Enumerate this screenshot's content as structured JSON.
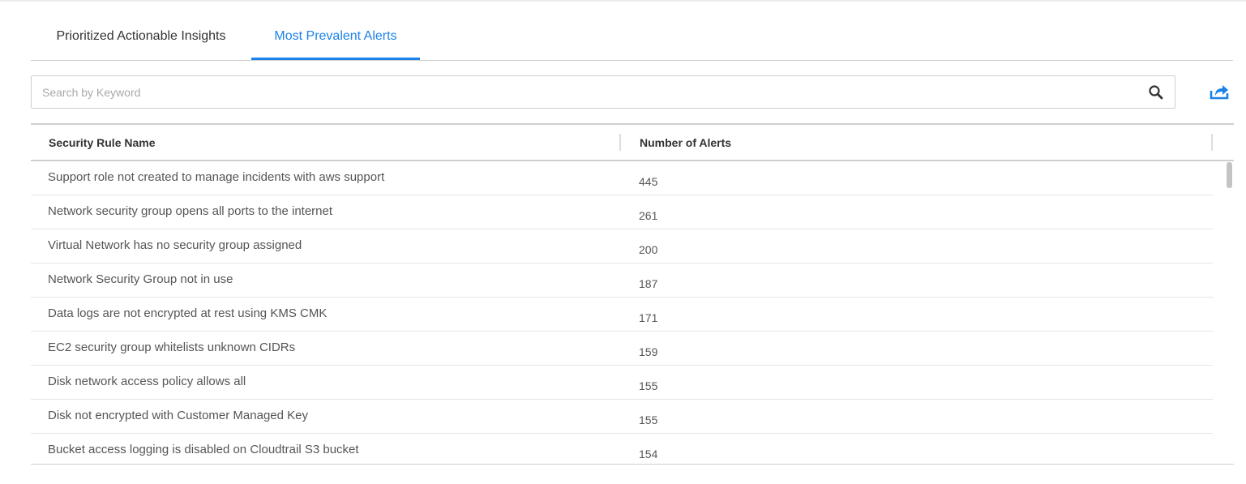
{
  "tabs": [
    {
      "label": "Prioritized Actionable Insights",
      "active": false
    },
    {
      "label": "Most Prevalent Alerts",
      "active": true
    }
  ],
  "search": {
    "placeholder": "Search by Keyword",
    "value": "",
    "icon": "search-icon"
  },
  "export": {
    "icon": "share-export-icon",
    "color": "#1a82e8"
  },
  "table": {
    "columns": [
      "Security Rule Name",
      "Number of Alerts"
    ],
    "rows": [
      [
        "Support role not created to manage incidents with aws support",
        "445"
      ],
      [
        "Network security group opens all ports to the internet",
        "261"
      ],
      [
        "Virtual Network has no security group assigned",
        "200"
      ],
      [
        "Network Security Group not in use",
        "187"
      ],
      [
        "Data logs are not encrypted at rest using KMS CMK",
        "171"
      ],
      [
        "EC2 security group whitelists unknown CIDRs",
        "159"
      ],
      [
        "Disk network access policy allows all",
        "155"
      ],
      [
        "Disk not encrypted with Customer Managed Key",
        "155"
      ],
      [
        "Bucket access logging is disabled on Cloudtrail S3 bucket",
        "154"
      ]
    ]
  }
}
